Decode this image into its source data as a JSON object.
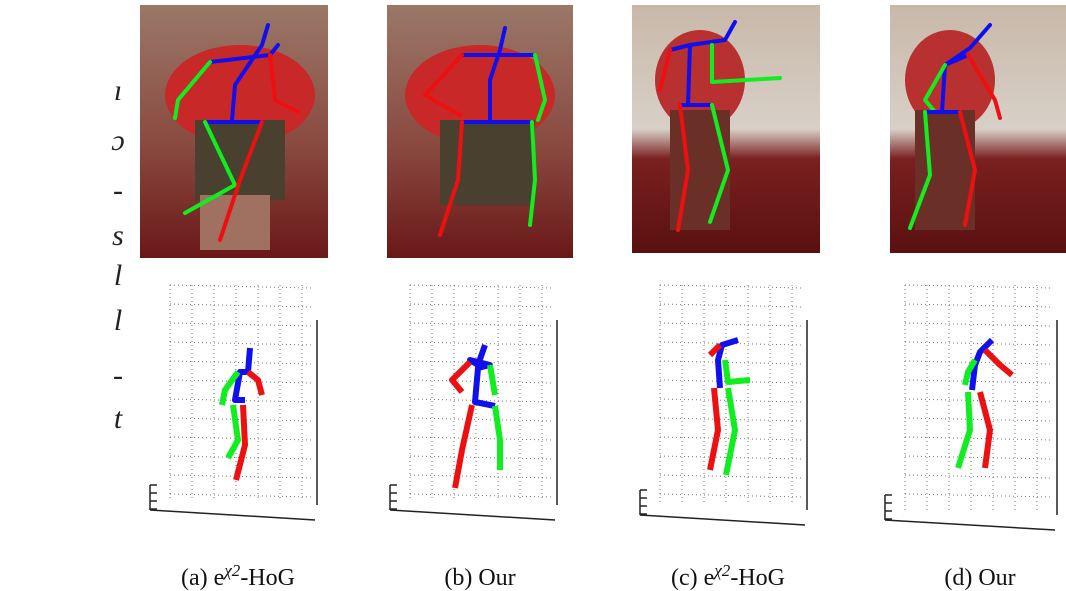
{
  "margin_text": [
    "ı",
    "ɔ",
    "-",
    "s",
    "l",
    "l",
    "-",
    "t"
  ],
  "captions": [
    {
      "prefix": "(a) e",
      "superscript": "χ2",
      "suffix": "-HoG"
    },
    {
      "prefix": "(b) Our"
    },
    {
      "prefix": "(c) e",
      "superscript": "χ2",
      "suffix": "-HoG"
    },
    {
      "prefix": "(d) Our"
    }
  ]
}
